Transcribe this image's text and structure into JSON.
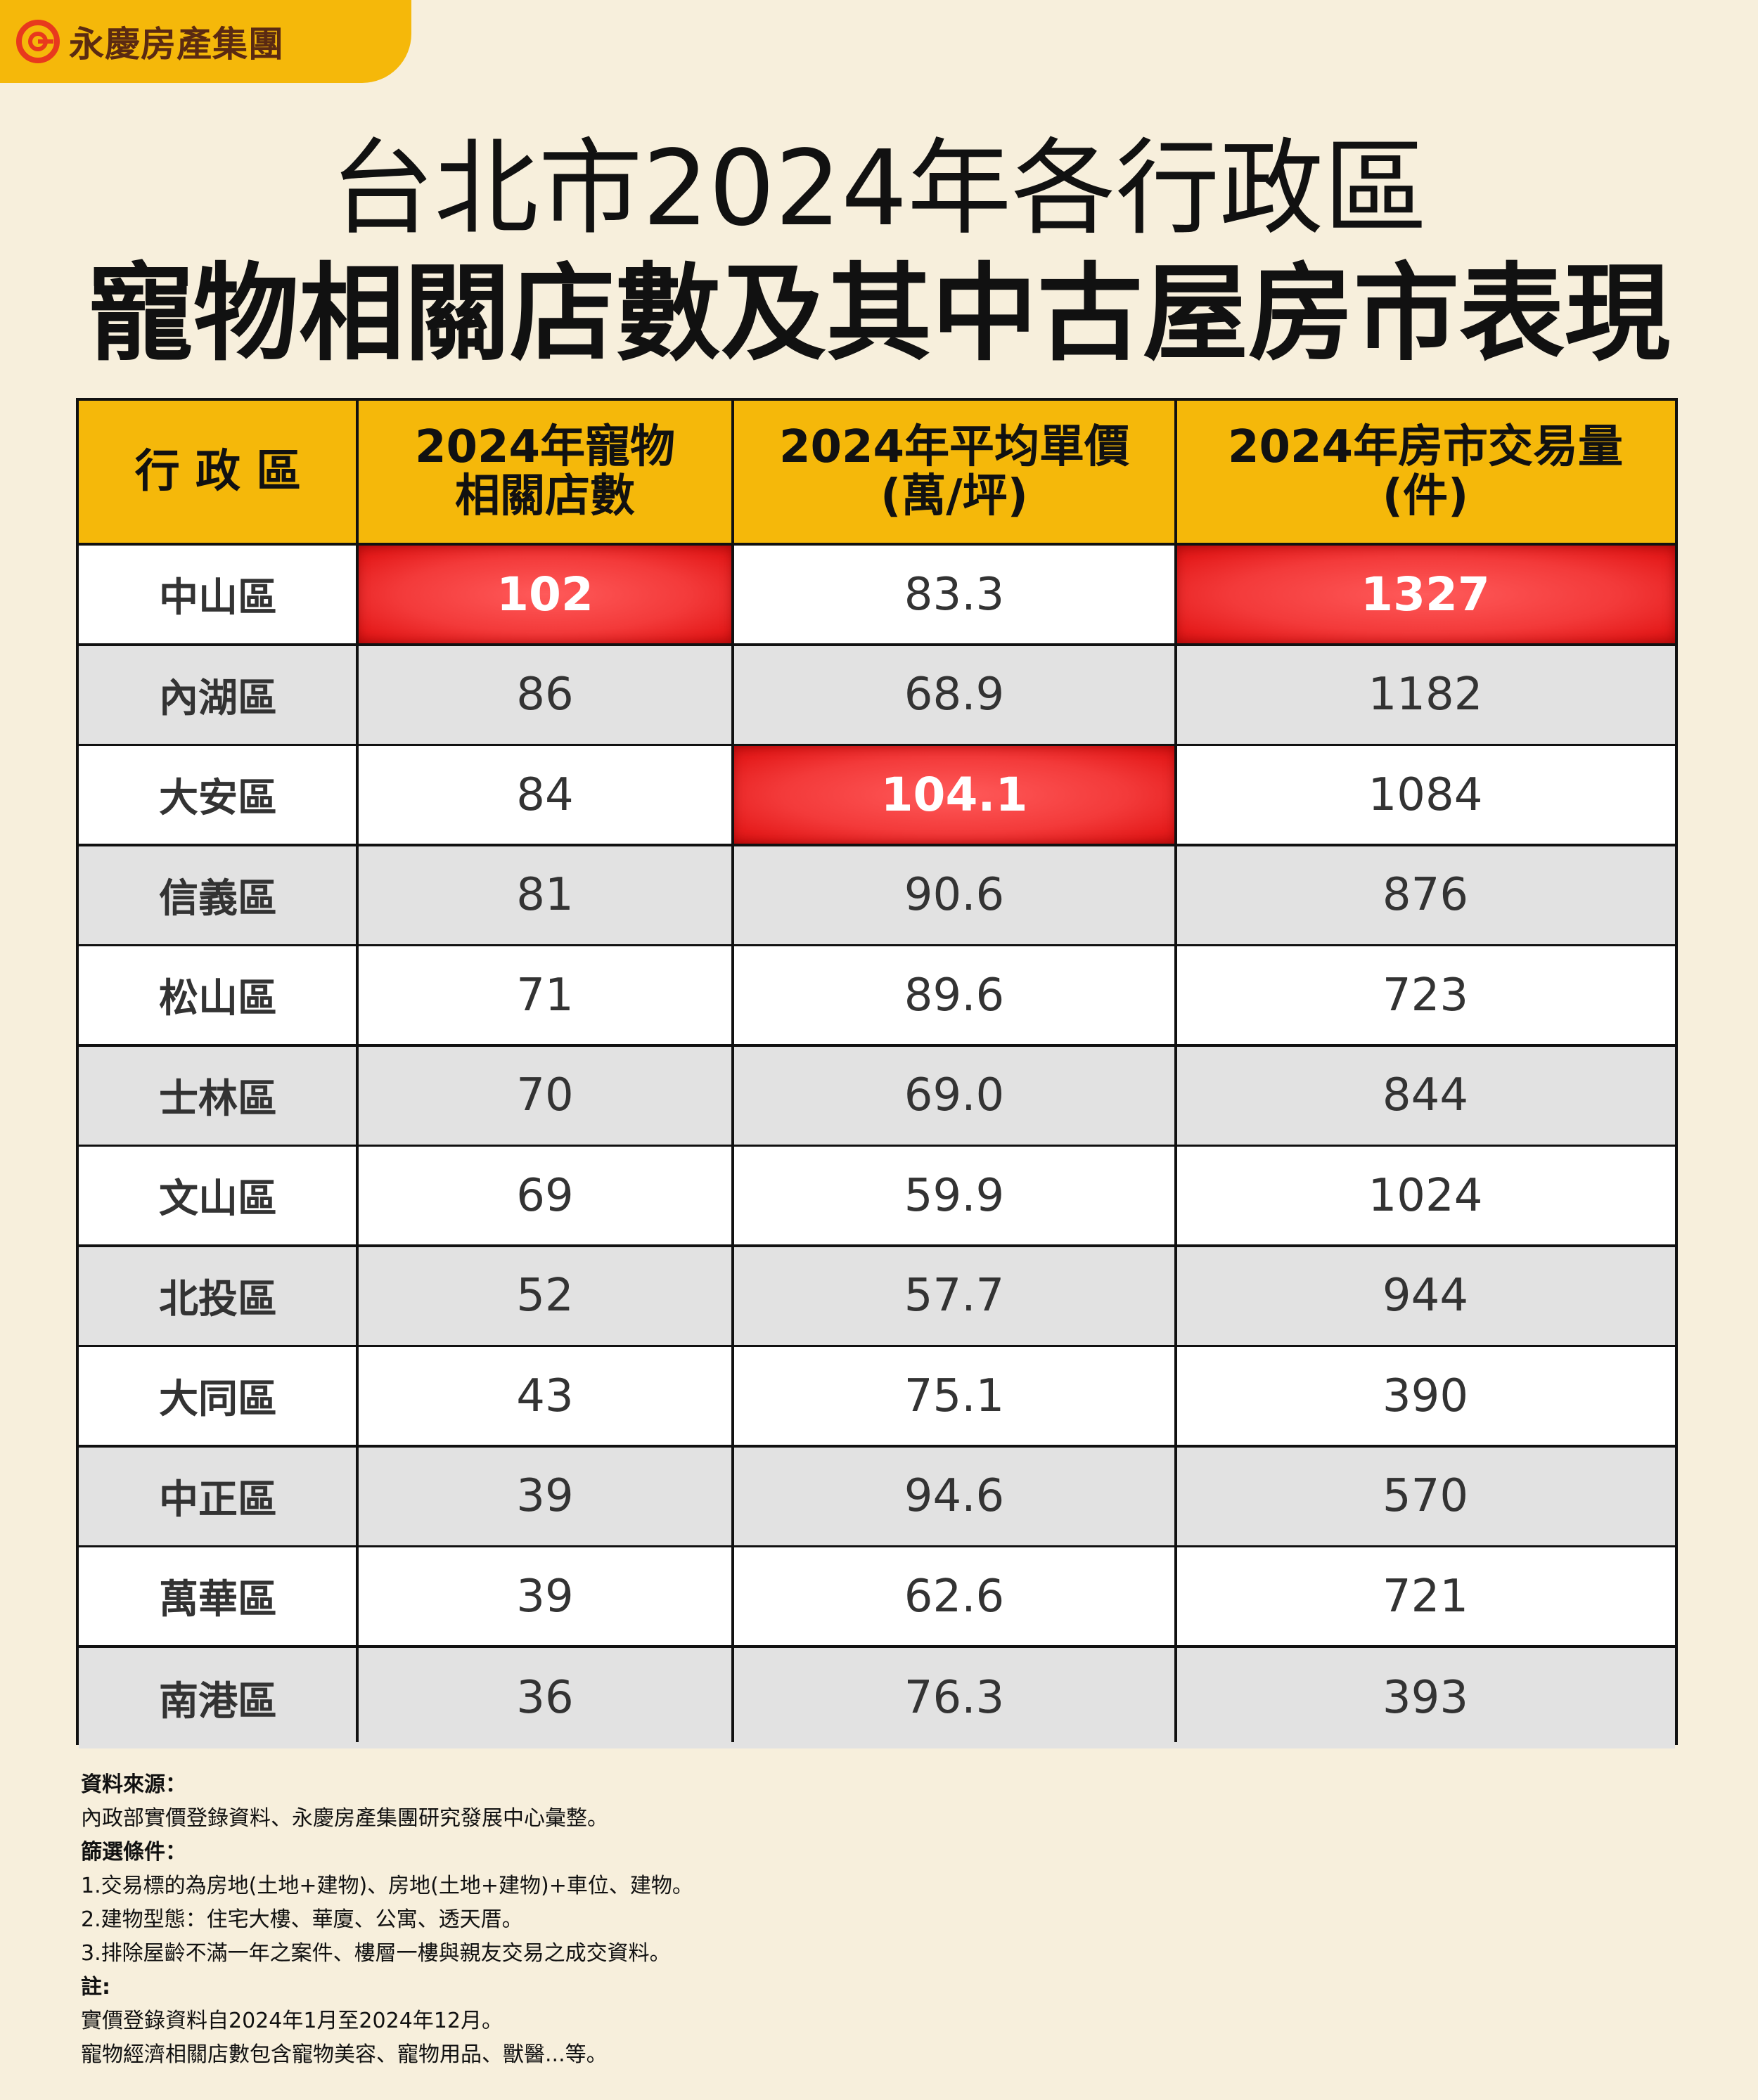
{
  "brand": {
    "name": "永慶房產集團",
    "logo_icon": "yungching-circle-logo-icon",
    "color": "#f5b80a",
    "text_color": "#5a2a12"
  },
  "title_line1": "台北市2024年各行政區",
  "title_line2": "寵物相關店數及其中古屋房市表現",
  "chart_data": {
    "type": "table",
    "columns": [
      "行 政 區",
      "2024年寵物\n相關店數",
      "2024年平均單價\n(萬/坪)",
      "2024年房市交易量\n(件)"
    ],
    "rows": [
      {
        "district": "中山區",
        "pet_stores": "102",
        "avg_price": "83.3",
        "transactions": "1327"
      },
      {
        "district": "內湖區",
        "pet_stores": "86",
        "avg_price": "68.9",
        "transactions": "1182"
      },
      {
        "district": "大安區",
        "pet_stores": "84",
        "avg_price": "104.1",
        "transactions": "1084"
      },
      {
        "district": "信義區",
        "pet_stores": "81",
        "avg_price": "90.6",
        "transactions": "876"
      },
      {
        "district": "松山區",
        "pet_stores": "71",
        "avg_price": "89.6",
        "transactions": "723"
      },
      {
        "district": "士林區",
        "pet_stores": "70",
        "avg_price": "69.0",
        "transactions": "844"
      },
      {
        "district": "文山區",
        "pet_stores": "69",
        "avg_price": "59.9",
        "transactions": "1024"
      },
      {
        "district": "北投區",
        "pet_stores": "52",
        "avg_price": "57.7",
        "transactions": "944"
      },
      {
        "district": "大同區",
        "pet_stores": "43",
        "avg_price": "75.1",
        "transactions": "390"
      },
      {
        "district": "中正區",
        "pet_stores": "39",
        "avg_price": "94.6",
        "transactions": "570"
      },
      {
        "district": "萬華區",
        "pet_stores": "39",
        "avg_price": "62.6",
        "transactions": "721"
      },
      {
        "district": "南港區",
        "pet_stores": "36",
        "avg_price": "76.3",
        "transactions": "393"
      }
    ],
    "highlighted_max": {
      "pet_stores": "102",
      "avg_price": "104.1",
      "transactions": "1327"
    },
    "colors": {
      "header": "#f5b80a",
      "highlight": "#ee2b2b",
      "row_alt": "#e2e2e2",
      "row": "#ffffff"
    }
  },
  "notes": {
    "source_label": "資料來源：",
    "source_text": "內政部實價登錄資料、永慶房產集團研究發展中心彙整。",
    "filter_label": "篩選條件：",
    "filter_1": "1.交易標的為房地(土地+建物)、房地(土地+建物)+車位、建物。",
    "filter_2": "2.建物型態：住宅大樓、華廈、公寓、透天厝。",
    "filter_3": "3.排除屋齡不滿一年之案件、樓層一樓與親友交易之成交資料。",
    "note_label": "註:",
    "note_1": "實價登錄資料自2024年1月至2024年12月。",
    "note_2": "寵物經濟相關店數包含寵物美容、寵物用品、獸醫...等。"
  }
}
